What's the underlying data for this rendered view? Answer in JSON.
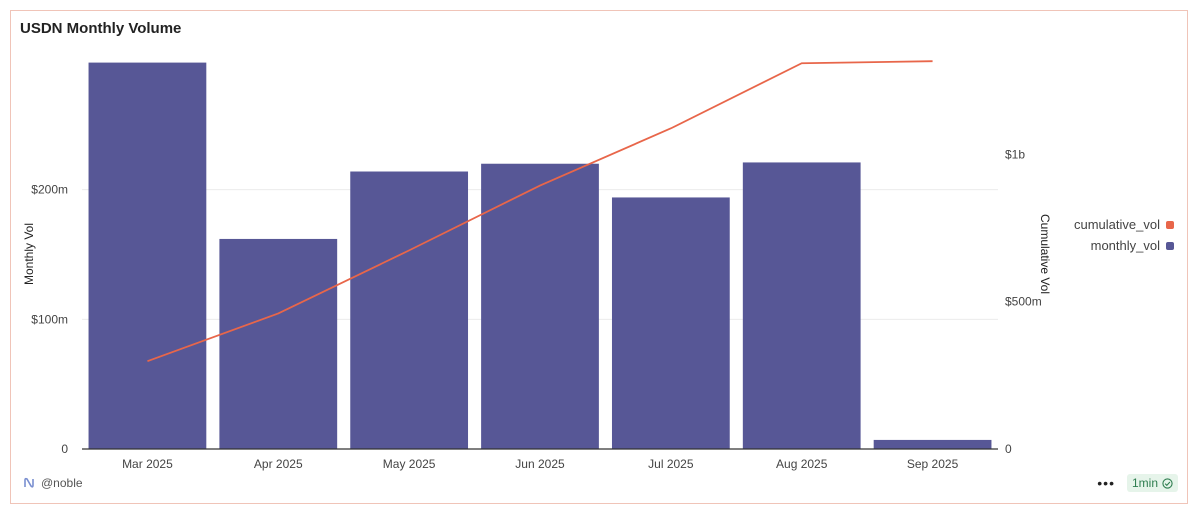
{
  "title": "USDN Monthly Volume",
  "footer": {
    "handle": "@noble",
    "badge": "1min"
  },
  "colors": {
    "bar": "#575796",
    "line": "#e8664a"
  },
  "chart_data": {
    "type": "bar",
    "categories": [
      "Mar 2025",
      "Apr 2025",
      "May 2025",
      "Jun 2025",
      "Jul 2025",
      "Aug 2025",
      "Sep 2025"
    ],
    "series": [
      {
        "name": "monthly_vol",
        "type": "bar",
        "axis": "left",
        "color": "#575796",
        "values": [
          298000000,
          162000000,
          214000000,
          220000000,
          194000000,
          221000000,
          7000000
        ]
      },
      {
        "name": "cumulative_vol",
        "type": "line",
        "axis": "right",
        "color": "#e8664a",
        "values": [
          298000000,
          460000000,
          674000000,
          894000000,
          1088000000,
          1309000000,
          1316000000
        ]
      }
    ],
    "ylabel": "Monthly Vol",
    "y2label": "Cumulative Vol",
    "ylim": [
      0,
      300000000
    ],
    "y2lim": [
      0,
      1320000000
    ],
    "yticks": [
      {
        "value": 0,
        "label": "0"
      },
      {
        "value": 100000000,
        "label": "$100m"
      },
      {
        "value": 200000000,
        "label": "$200m"
      }
    ],
    "y2ticks": [
      {
        "value": 0,
        "label": "0"
      },
      {
        "value": 500000000,
        "label": "$500m"
      },
      {
        "value": 1000000000,
        "label": "$1b"
      }
    ],
    "legend": [
      "cumulative_vol",
      "monthly_vol"
    ],
    "legend_position": "right",
    "grid": true
  }
}
